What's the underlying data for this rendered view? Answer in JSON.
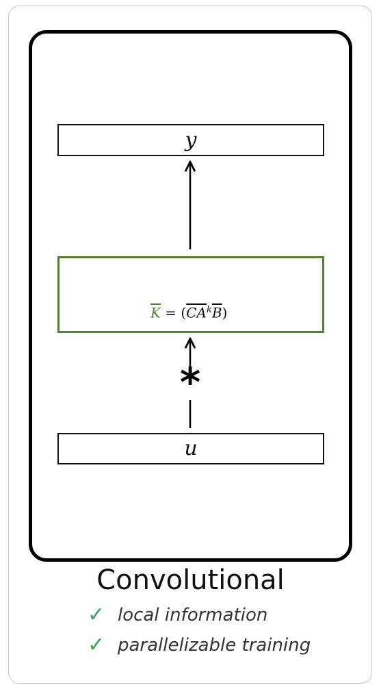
{
  "diagram": {
    "output_label": "y",
    "input_label": "u",
    "kernel_formula": {
      "lhs": "K",
      "equals": " = (",
      "c": "C",
      "a": "A",
      "power": "k",
      "b": "B",
      "close": ")"
    },
    "operator_symbol": "*",
    "title": "Convolutional",
    "features": [
      {
        "check": "✓",
        "text": "local information"
      },
      {
        "check": "✓",
        "text": "parallelizable training"
      }
    ]
  },
  "colors": {
    "kernel_border": "#548235",
    "check": "#2fa84f"
  }
}
